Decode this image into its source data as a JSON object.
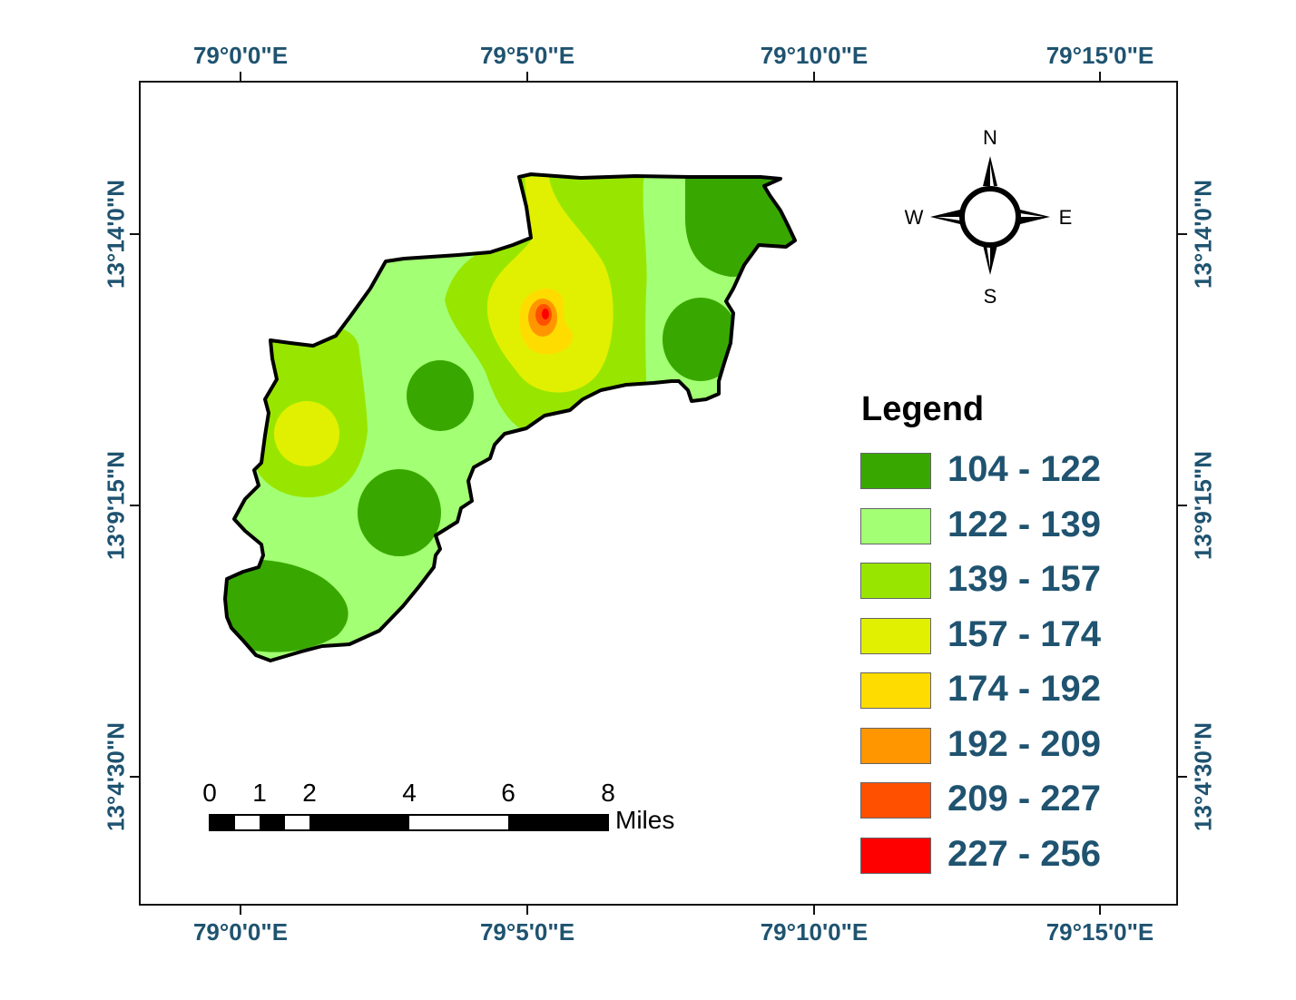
{
  "map": {
    "top_coords": [
      "79°0'0\"E",
      "79°5'0\"E",
      "79°10'0\"E",
      "79°15'0\"E"
    ],
    "bottom_coords": [
      "79°0'0\"E",
      "79°5'0\"E",
      "79°10'0\"E",
      "79°15'0\"E"
    ],
    "left_coords": [
      "13°14'0\"N",
      "13°9'15\"N",
      "13°4'30\"N"
    ],
    "right_coords": [
      "13°14'0\"N",
      "13°9'15\"N",
      "13°4'30\"N"
    ]
  },
  "compass": {
    "n": "N",
    "s": "S",
    "e": "E",
    "w": "W"
  },
  "legend": {
    "title": "Legend",
    "classes": [
      {
        "label": "104 - 122",
        "color": "#38a800"
      },
      {
        "label": "122 - 139",
        "color": "#a3ff73"
      },
      {
        "label": "139 - 157",
        "color": "#98e600"
      },
      {
        "label": "157 - 174",
        "color": "#e1f000"
      },
      {
        "label": "174 - 192",
        "color": "#ffdc00"
      },
      {
        "label": "192 - 209",
        "color": "#ff9600"
      },
      {
        "label": "209 - 227",
        "color": "#ff5000"
      },
      {
        "label": "227 - 256",
        "color": "#ff0000"
      }
    ]
  },
  "scale_bar": {
    "ticks": [
      "0",
      "1",
      "2",
      "4",
      "6",
      "8"
    ],
    "unit": "Miles"
  }
}
